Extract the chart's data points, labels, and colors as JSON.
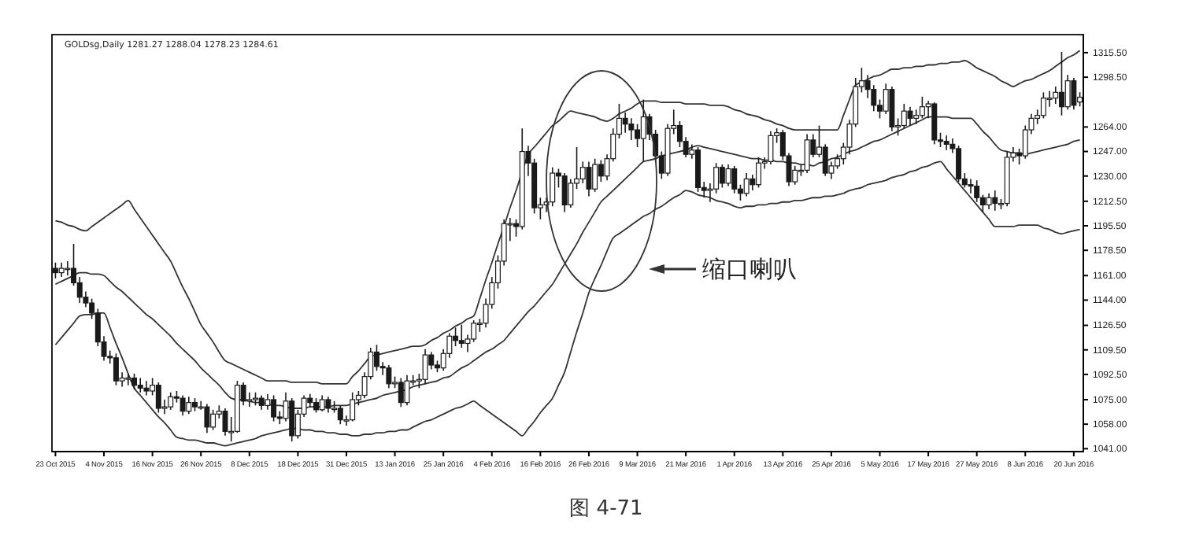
{
  "chart_data": {
    "type": "candlestick",
    "title": "GOLDsg,Daily  1281.27 1288.04 1278.23 1284.61",
    "color": "#1a1a1a",
    "categories": [
      "23 Oct 2015",
      null,
      null,
      null,
      null,
      null,
      null,
      null,
      "4 Nov 2015",
      null,
      null,
      null,
      null,
      null,
      null,
      null,
      "16 Nov 2015",
      null,
      null,
      null,
      null,
      null,
      null,
      null,
      "26 Nov 2015",
      null,
      null,
      null,
      null,
      null,
      null,
      null,
      "8 Dec 2015",
      null,
      null,
      null,
      null,
      null,
      null,
      null,
      "18 Dec 2015",
      null,
      null,
      null,
      null,
      null,
      null,
      null,
      "31 Dec 2015",
      null,
      null,
      null,
      null,
      null,
      null,
      null,
      "13 Jan 2016",
      null,
      null,
      null,
      null,
      null,
      null,
      null,
      "25 Jan 2016",
      null,
      null,
      null,
      null,
      null,
      null,
      null,
      "4 Feb 2016",
      null,
      null,
      null,
      null,
      null,
      null,
      null,
      "16 Feb 2016",
      null,
      null,
      null,
      null,
      null,
      null,
      null,
      "26 Feb 2016",
      null,
      null,
      null,
      null,
      null,
      null,
      null,
      "9 Mar 2016",
      null,
      null,
      null,
      null,
      null,
      null,
      null,
      "21 Mar 2016",
      null,
      null,
      null,
      null,
      null,
      null,
      null,
      "1 Apr 2016",
      null,
      null,
      null,
      null,
      null,
      null,
      null,
      "13 Apr 2016",
      null,
      null,
      null,
      null,
      null,
      null,
      null,
      "25 Apr 2016",
      null,
      null,
      null,
      null,
      null,
      null,
      null,
      "5 May 2016",
      null,
      null,
      null,
      null,
      null,
      null,
      null,
      "17 May 2016",
      null,
      null,
      null,
      null,
      null,
      null,
      null,
      "27 May 2016",
      null,
      null,
      null,
      null,
      null,
      null,
      null,
      "8 Jun 2016",
      null,
      null,
      null,
      null,
      null,
      null,
      null,
      "20 Jun 2016",
      null
    ],
    "ohlc": [
      [
        1166,
        1170,
        1159,
        1163
      ],
      [
        1163,
        1170,
        1160,
        1166
      ],
      [
        1166,
        1171,
        1161,
        1166
      ],
      [
        1166,
        1183,
        1154,
        1156
      ],
      [
        1156,
        1160,
        1142,
        1146
      ],
      [
        1146,
        1150,
        1139,
        1142
      ],
      [
        1142,
        1145,
        1131,
        1135
      ],
      [
        1135,
        1138,
        1112,
        1115
      ],
      [
        1115,
        1119,
        1102,
        1105
      ],
      [
        1105,
        1109,
        1100,
        1104
      ],
      [
        1104,
        1107,
        1085,
        1088
      ],
      [
        1088,
        1094,
        1084,
        1090
      ],
      [
        1090,
        1093,
        1085,
        1090
      ],
      [
        1090,
        1093,
        1082,
        1085
      ],
      [
        1085,
        1090,
        1080,
        1083
      ],
      [
        1083,
        1088,
        1078,
        1081
      ],
      [
        1081,
        1090,
        1078,
        1085
      ],
      [
        1085,
        1087,
        1066,
        1069
      ],
      [
        1069,
        1075,
        1065,
        1070
      ],
      [
        1070,
        1080,
        1068,
        1077
      ],
      [
        1077,
        1081,
        1073,
        1076
      ],
      [
        1076,
        1078,
        1064,
        1067
      ],
      [
        1067,
        1077,
        1065,
        1073
      ],
      [
        1073,
        1076,
        1067,
        1070
      ],
      [
        1070,
        1074,
        1068,
        1070
      ],
      [
        1070,
        1072,
        1052,
        1056
      ],
      [
        1056,
        1068,
        1054,
        1065
      ],
      [
        1065,
        1071,
        1062,
        1067
      ],
      [
        1067,
        1069,
        1050,
        1053
      ],
      [
        1053,
        1063,
        1046,
        1053
      ],
      [
        1053,
        1088,
        1052,
        1085
      ],
      [
        1085,
        1087,
        1071,
        1074
      ],
      [
        1074,
        1080,
        1070,
        1075
      ],
      [
        1075,
        1080,
        1071,
        1076
      ],
      [
        1076,
        1078,
        1068,
        1071
      ],
      [
        1071,
        1079,
        1068,
        1075
      ],
      [
        1075,
        1078,
        1060,
        1063
      ],
      [
        1063,
        1067,
        1058,
        1062
      ],
      [
        1062,
        1080,
        1060,
        1074
      ],
      [
        1074,
        1076,
        1046,
        1050
      ],
      [
        1050,
        1068,
        1048,
        1065
      ],
      [
        1065,
        1078,
        1063,
        1076
      ],
      [
        1076,
        1079,
        1070,
        1073
      ],
      [
        1073,
        1076,
        1066,
        1068
      ],
      [
        1068,
        1078,
        1067,
        1075
      ],
      [
        1075,
        1077,
        1066,
        1069
      ],
      [
        1069,
        1074,
        1066,
        1069
      ],
      [
        1069,
        1071,
        1058,
        1061
      ],
      [
        1061,
        1064,
        1057,
        1061
      ],
      [
        1061,
        1080,
        1060,
        1075
      ],
      [
        1075,
        1081,
        1071,
        1078
      ],
      [
        1078,
        1094,
        1076,
        1091
      ],
      [
        1091,
        1111,
        1089,
        1108
      ],
      [
        1108,
        1113,
        1095,
        1098
      ],
      [
        1098,
        1101,
        1092,
        1097
      ],
      [
        1097,
        1099,
        1083,
        1086
      ],
      [
        1086,
        1091,
        1083,
        1087
      ],
      [
        1087,
        1090,
        1070,
        1073
      ],
      [
        1073,
        1092,
        1071,
        1088
      ],
      [
        1088,
        1092,
        1085,
        1088
      ],
      [
        1088,
        1093,
        1083,
        1089
      ],
      [
        1089,
        1110,
        1086,
        1106
      ],
      [
        1106,
        1108,
        1096,
        1099
      ],
      [
        1099,
        1102,
        1094,
        1097
      ],
      [
        1097,
        1110,
        1095,
        1107
      ],
      [
        1107,
        1121,
        1104,
        1119
      ],
      [
        1119,
        1125,
        1112,
        1116
      ],
      [
        1116,
        1127,
        1111,
        1114
      ],
      [
        1114,
        1120,
        1108,
        1117
      ],
      [
        1117,
        1130,
        1115,
        1128
      ],
      [
        1128,
        1131,
        1122,
        1128
      ],
      [
        1128,
        1145,
        1125,
        1141
      ],
      [
        1141,
        1160,
        1138,
        1156
      ],
      [
        1156,
        1175,
        1152,
        1171
      ],
      [
        1171,
        1200,
        1168,
        1197
      ],
      [
        1197,
        1201,
        1185,
        1197
      ],
      [
        1197,
        1200,
        1188,
        1195
      ],
      [
        1195,
        1263,
        1193,
        1247
      ],
      [
        1247,
        1251,
        1230,
        1239
      ],
      [
        1239,
        1242,
        1204,
        1208
      ],
      [
        1208,
        1215,
        1200,
        1210
      ],
      [
        1210,
        1215,
        1205,
        1212
      ],
      [
        1212,
        1236,
        1209,
        1232
      ],
      [
        1232,
        1235,
        1222,
        1230
      ],
      [
        1230,
        1232,
        1205,
        1210
      ],
      [
        1210,
        1228,
        1208,
        1225
      ],
      [
        1225,
        1250,
        1221,
        1228
      ],
      [
        1228,
        1240,
        1225,
        1236
      ],
      [
        1236,
        1240,
        1216,
        1221
      ],
      [
        1221,
        1242,
        1219,
        1238
      ],
      [
        1238,
        1241,
        1226,
        1230
      ],
      [
        1230,
        1245,
        1227,
        1242
      ],
      [
        1242,
        1263,
        1240,
        1259
      ],
      [
        1259,
        1280,
        1256,
        1270
      ],
      [
        1270,
        1274,
        1260,
        1266
      ],
      [
        1266,
        1270,
        1255,
        1262
      ],
      [
        1262,
        1266,
        1250,
        1256
      ],
      [
        1256,
        1283,
        1240,
        1271
      ],
      [
        1271,
        1273,
        1255,
        1259
      ],
      [
        1259,
        1262,
        1240,
        1244
      ],
      [
        1244,
        1247,
        1228,
        1232
      ],
      [
        1232,
        1266,
        1230,
        1263
      ],
      [
        1263,
        1276,
        1259,
        1265
      ],
      [
        1265,
        1268,
        1250,
        1254
      ],
      [
        1254,
        1257,
        1243,
        1245
      ],
      [
        1245,
        1252,
        1242,
        1248
      ],
      [
        1248,
        1250,
        1219,
        1222
      ],
      [
        1222,
        1226,
        1215,
        1220
      ],
      [
        1220,
        1225,
        1212,
        1221
      ],
      [
        1221,
        1239,
        1218,
        1236
      ],
      [
        1236,
        1238,
        1222,
        1225
      ],
      [
        1225,
        1238,
        1223,
        1235
      ],
      [
        1235,
        1237,
        1218,
        1221
      ],
      [
        1221,
        1224,
        1213,
        1218
      ],
      [
        1218,
        1232,
        1216,
        1228
      ],
      [
        1228,
        1231,
        1220,
        1224
      ],
      [
        1224,
        1243,
        1222,
        1239
      ],
      [
        1239,
        1243,
        1235,
        1240
      ],
      [
        1240,
        1261,
        1238,
        1258
      ],
      [
        1258,
        1263,
        1253,
        1260
      ],
      [
        1260,
        1262,
        1241,
        1244
      ],
      [
        1244,
        1246,
        1223,
        1226
      ],
      [
        1226,
        1237,
        1224,
        1234
      ],
      [
        1234,
        1238,
        1230,
        1234
      ],
      [
        1234,
        1259,
        1232,
        1255
      ],
      [
        1255,
        1259,
        1243,
        1245
      ],
      [
        1245,
        1265,
        1243,
        1250
      ],
      [
        1250,
        1252,
        1230,
        1232
      ],
      [
        1232,
        1240,
        1228,
        1237
      ],
      [
        1237,
        1245,
        1235,
        1242
      ],
      [
        1242,
        1253,
        1238,
        1250
      ],
      [
        1250,
        1269,
        1245,
        1266
      ],
      [
        1266,
        1298,
        1264,
        1292
      ],
      [
        1292,
        1305,
        1288,
        1296
      ],
      [
        1296,
        1300,
        1284,
        1290
      ],
      [
        1290,
        1293,
        1275,
        1279
      ],
      [
        1279,
        1283,
        1270,
        1275
      ],
      [
        1275,
        1294,
        1273,
        1290
      ],
      [
        1290,
        1292,
        1261,
        1264
      ],
      [
        1264,
        1270,
        1258,
        1265
      ],
      [
        1265,
        1280,
        1263,
        1275
      ],
      [
        1275,
        1278,
        1265,
        1270
      ],
      [
        1270,
        1276,
        1266,
        1272
      ],
      [
        1272,
        1285,
        1270,
        1278
      ],
      [
        1278,
        1282,
        1270,
        1280
      ],
      [
        1280,
        1281,
        1252,
        1255
      ],
      [
        1255,
        1260,
        1250,
        1254
      ],
      [
        1254,
        1258,
        1248,
        1252
      ],
      [
        1252,
        1256,
        1246,
        1249
      ],
      [
        1249,
        1251,
        1226,
        1228
      ],
      [
        1228,
        1232,
        1222,
        1224
      ],
      [
        1224,
        1228,
        1218,
        1223
      ],
      [
        1223,
        1227,
        1212,
        1215
      ],
      [
        1215,
        1217,
        1205,
        1210
      ],
      [
        1210,
        1218,
        1207,
        1215
      ],
      [
        1215,
        1220,
        1206,
        1211
      ],
      [
        1211,
        1214,
        1207,
        1211
      ],
      [
        1211,
        1247,
        1209,
        1243
      ],
      [
        1243,
        1250,
        1240,
        1246
      ],
      [
        1246,
        1249,
        1238,
        1244
      ],
      [
        1244,
        1265,
        1242,
        1262
      ],
      [
        1262,
        1273,
        1259,
        1270
      ],
      [
        1270,
        1276,
        1266,
        1272
      ],
      [
        1272,
        1288,
        1270,
        1284
      ],
      [
        1284,
        1289,
        1278,
        1284
      ],
      [
        1284,
        1292,
        1280,
        1288
      ],
      [
        1288,
        1316,
        1272,
        1278
      ],
      [
        1278,
        1300,
        1276,
        1296
      ],
      [
        1296,
        1298,
        1276,
        1279
      ],
      [
        1281.27,
        1288.04,
        1278.23,
        1284.61
      ]
    ],
    "series": [
      {
        "type": "line",
        "color": "#333333",
        "values": [
          1199,
          1198,
          1196,
          1195,
          1193,
          1192,
          1195,
          1198,
          1201,
          1204,
          1207,
          1210,
          1213,
          1207,
          1201,
          1195,
          1189,
          1183,
          1177,
          1171,
          1162,
          1153,
          1145,
          1136,
          1127,
          1121,
          1115,
          1108,
          1102,
          1100,
          1098,
          1096,
          1094,
          1092,
          1090,
          1088,
          1088,
          1088,
          1088,
          1087,
          1087,
          1087,
          1087,
          1087,
          1086,
          1086,
          1086,
          1086,
          1086,
          1091,
          1095,
          1100,
          1105,
          1106,
          1107,
          1108,
          1109,
          1110,
          1111,
          1112,
          1112,
          1113,
          1116,
          1118,
          1121,
          1123,
          1126,
          1128,
          1131,
          1133,
          1145,
          1158,
          1170,
          1183,
          1195,
          1208,
          1220,
          1233,
          1245,
          1250,
          1255,
          1260,
          1265,
          1268,
          1272,
          1275,
          1274,
          1273,
          1272,
          1271,
          1269,
          1268,
          1270,
          1273,
          1275,
          1277,
          1280,
          1282,
          1282,
          1282,
          1281,
          1281,
          1281,
          1281,
          1280,
          1280,
          1280,
          1280,
          1279,
          1279,
          1279,
          1278,
          1276,
          1275,
          1273,
          1272,
          1271,
          1269,
          1268,
          1266,
          1265,
          1263,
          1262,
          1262,
          1262,
          1262,
          1262,
          1262,
          1262,
          1262,
          1272,
          1283,
          1293,
          1295,
          1297,
          1299,
          1300,
          1302,
          1304,
          1304,
          1305,
          1305,
          1306,
          1306,
          1307,
          1307,
          1308,
          1308,
          1309,
          1309,
          1310,
          1308,
          1305,
          1303,
          1301,
          1299,
          1296,
          1294,
          1292,
          1294,
          1296,
          1297,
          1299,
          1301,
          1303,
          1306,
          1309,
          1312,
          1314,
          1317
        ]
      },
      {
        "type": "line",
        "color": "#333333",
        "values": [
          1155,
          1157,
          1159,
          1161,
          1163,
          1163,
          1162,
          1162,
          1161,
          1157,
          1153,
          1150,
          1146,
          1142,
          1138,
          1134,
          1131,
          1127,
          1123,
          1119,
          1114,
          1110,
          1106,
          1102,
          1097,
          1093,
          1089,
          1085,
          1080,
          1076,
          1075,
          1075,
          1074,
          1073,
          1073,
          1072,
          1071,
          1071,
          1070,
          1069,
          1069,
          1069,
          1070,
          1070,
          1070,
          1070,
          1071,
          1071,
          1071,
          1072,
          1073,
          1074,
          1075,
          1076,
          1078,
          1079,
          1080,
          1081,
          1082,
          1084,
          1085,
          1086,
          1087,
          1088,
          1090,
          1091,
          1094,
          1097,
          1099,
          1102,
          1105,
          1108,
          1110,
          1113,
          1116,
          1121,
          1126,
          1131,
          1136,
          1140,
          1145,
          1150,
          1155,
          1162,
          1169,
          1176,
          1183,
          1191,
          1198,
          1205,
          1212,
          1216,
          1220,
          1224,
          1228,
          1232,
          1236,
          1240,
          1241,
          1242,
          1244,
          1245,
          1246,
          1247,
          1248,
          1250,
          1251,
          1250,
          1249,
          1248,
          1247,
          1246,
          1245,
          1244,
          1243,
          1242,
          1242,
          1241,
          1241,
          1240,
          1240,
          1239,
          1239,
          1238,
          1238,
          1237,
          1239,
          1240,
          1242,
          1243,
          1245,
          1247,
          1248,
          1250,
          1252,
          1254,
          1255,
          1257,
          1259,
          1261,
          1263,
          1265,
          1267,
          1269,
          1271,
          1271,
          1271,
          1271,
          1270,
          1270,
          1270,
          1270,
          1266,
          1261,
          1257,
          1252,
          1248,
          1247,
          1246,
          1246,
          1245,
          1246,
          1247,
          1248,
          1249,
          1250,
          1251,
          1252,
          1254,
          1255
        ]
      },
      {
        "type": "line",
        "color": "#333333",
        "values": [
          1113,
          1118,
          1123,
          1128,
          1133,
          1134,
          1134,
          1135,
          1135,
          1125,
          1114,
          1104,
          1093,
          1083,
          1078,
          1073,
          1068,
          1063,
          1059,
          1054,
          1049,
          1048,
          1047,
          1047,
          1046,
          1045,
          1045,
          1044,
          1043,
          1044,
          1045,
          1046,
          1047,
          1048,
          1050,
          1051,
          1052,
          1053,
          1054,
          1055,
          1055,
          1054,
          1054,
          1053,
          1053,
          1052,
          1052,
          1051,
          1051,
          1050,
          1050,
          1051,
          1051,
          1052,
          1052,
          1053,
          1053,
          1054,
          1054,
          1056,
          1058,
          1060,
          1061,
          1063,
          1065,
          1067,
          1069,
          1070,
          1072,
          1074,
          1071,
          1068,
          1065,
          1062,
          1059,
          1056,
          1053,
          1050,
          1055,
          1060,
          1066,
          1071,
          1076,
          1085,
          1094,
          1108,
          1122,
          1135,
          1149,
          1159,
          1168,
          1178,
          1187,
          1190,
          1193,
          1196,
          1199,
          1202,
          1204,
          1207,
          1209,
          1212,
          1215,
          1217,
          1220,
          1219,
          1217,
          1216,
          1215,
          1213,
          1212,
          1211,
          1209,
          1208,
          1209,
          1209,
          1210,
          1210,
          1211,
          1211,
          1212,
          1212,
          1213,
          1213,
          1214,
          1215,
          1215,
          1216,
          1216,
          1217,
          1218,
          1220,
          1221,
          1222,
          1224,
          1225,
          1226,
          1227,
          1229,
          1230,
          1231,
          1233,
          1234,
          1236,
          1237,
          1239,
          1240,
          1235,
          1230,
          1225,
          1220,
          1215,
          1210,
          1205,
          1200,
          1195,
          1195,
          1195,
          1195,
          1196,
          1196,
          1196,
          1196,
          1194,
          1193,
          1191,
          1190,
          1191,
          1192,
          1193
        ]
      }
    ],
    "ylim": [
      1039,
      1328
    ],
    "yticks": [
      {
        "value": 1041,
        "label": "1041.00"
      },
      {
        "value": 1058,
        "label": "1058.00"
      },
      {
        "value": 1075,
        "label": "1075.00"
      },
      {
        "value": 1092.5,
        "label": "1092.50"
      },
      {
        "value": 1109.5,
        "label": "1109.50"
      },
      {
        "value": 1126.5,
        "label": "1126.50"
      },
      {
        "value": 1144,
        "label": "1144.00"
      },
      {
        "value": 1161,
        "label": "1161.00"
      },
      {
        "value": 1178.5,
        "label": "1178.50"
      },
      {
        "value": 1195.5,
        "label": "1195.50"
      },
      {
        "value": 1212.5,
        "label": "1212.50"
      },
      {
        "value": 1230,
        "label": "1230.00"
      },
      {
        "value": 1247,
        "label": "1247.00"
      },
      {
        "value": 1264,
        "label": "1264.00"
      },
      {
        "value": 1298.5,
        "label": "1298.50"
      },
      {
        "value": 1315.5,
        "label": "1315.50"
      }
    ],
    "annotations": [
      "缩口喇叭",
      "图 4-71"
    ]
  }
}
